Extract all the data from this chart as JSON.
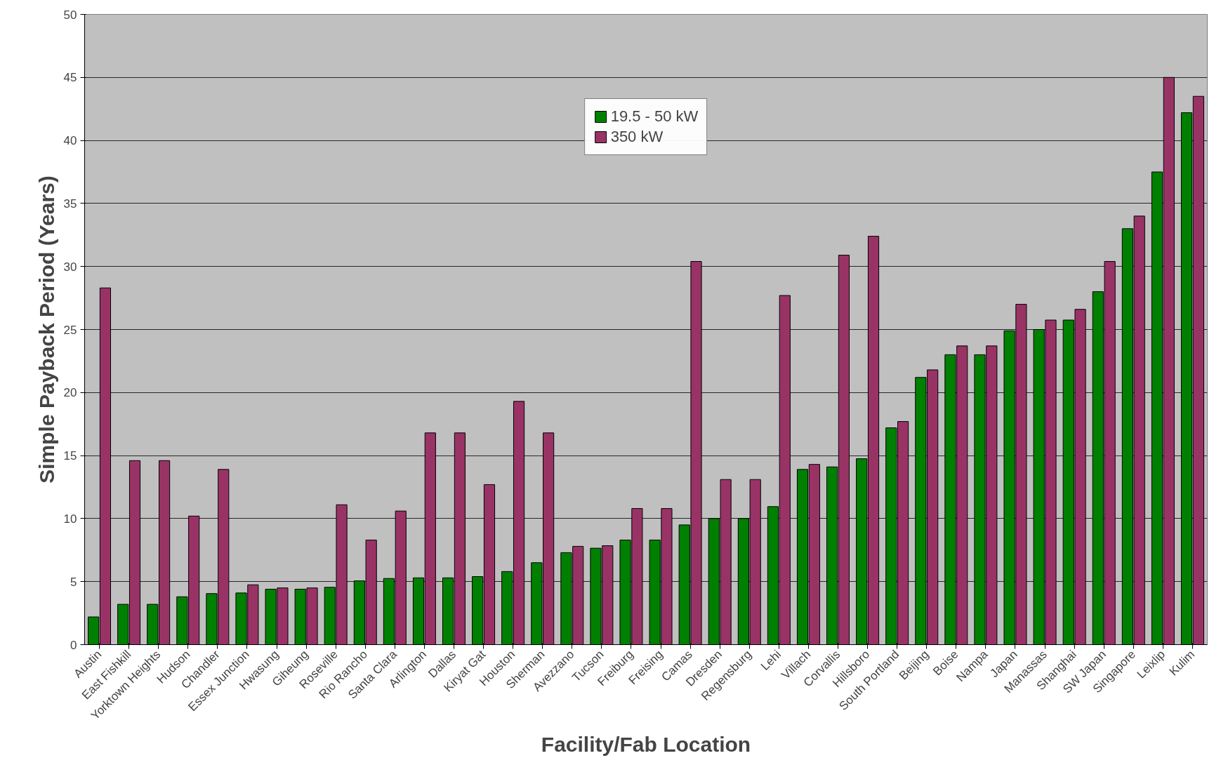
{
  "chart_data": {
    "type": "bar",
    "xlabel": "Facility/Fab Location",
    "ylabel": "Simple Payback Period (Years)",
    "categories": [
      "Austin",
      "East Fishkill",
      "Yorktown Heights",
      "Hudson",
      "Chandler",
      "Essex Junction",
      "Hwasung",
      "Giheung",
      "Roseville",
      "Rio Rancho",
      "Santa Clara",
      "Arlington",
      "Dallas",
      "Kiryat Gat",
      "Houston",
      "Sherman",
      "Avezzano",
      "Tucson",
      "Freiburg",
      "Freising",
      "Camas",
      "Dresden",
      "Regensburg",
      "Lehi",
      "Villach",
      "Corvallis",
      "Hillsboro",
      "South Portland",
      "Beijing",
      "Boise",
      "Nampa",
      "Japan",
      "Manassas",
      "Shanghai",
      "SW Japan",
      "Singapore",
      "Leixlip",
      "Kulim"
    ],
    "series": [
      {
        "name": "19.5 - 50 kW",
        "color": "#008000",
        "values": [
          2.2,
          3.2,
          3.2,
          3.8,
          4.05,
          4.1,
          4.4,
          4.4,
          4.55,
          5.06,
          5.25,
          5.3,
          5.3,
          5.4,
          5.8,
          6.5,
          7.3,
          7.65,
          8.3,
          8.3,
          9.5,
          10.0,
          10.0,
          10.95,
          13.9,
          14.1,
          14.75,
          17.2,
          21.2,
          23.0,
          23.0,
          24.9,
          25.0,
          25.75,
          28.0,
          33.0,
          37.5,
          42.2
        ]
      },
      {
        "name": "350 kW",
        "color": "#993366",
        "values": [
          28.3,
          14.6,
          14.6,
          10.2,
          13.9,
          4.75,
          4.5,
          4.5,
          11.1,
          8.3,
          10.6,
          16.8,
          16.8,
          12.7,
          19.3,
          16.8,
          7.8,
          7.85,
          10.8,
          10.8,
          30.4,
          13.1,
          13.1,
          27.7,
          14.3,
          30.9,
          32.4,
          17.7,
          21.8,
          23.7,
          23.7,
          27.0,
          25.75,
          26.6,
          30.4,
          34.0,
          45.0,
          43.5
        ]
      }
    ],
    "ylim": [
      0,
      50
    ],
    "yticks": [
      0,
      5,
      10,
      15,
      20,
      25,
      30,
      35,
      40,
      45,
      50
    ],
    "grid": "y",
    "legend": "top"
  }
}
